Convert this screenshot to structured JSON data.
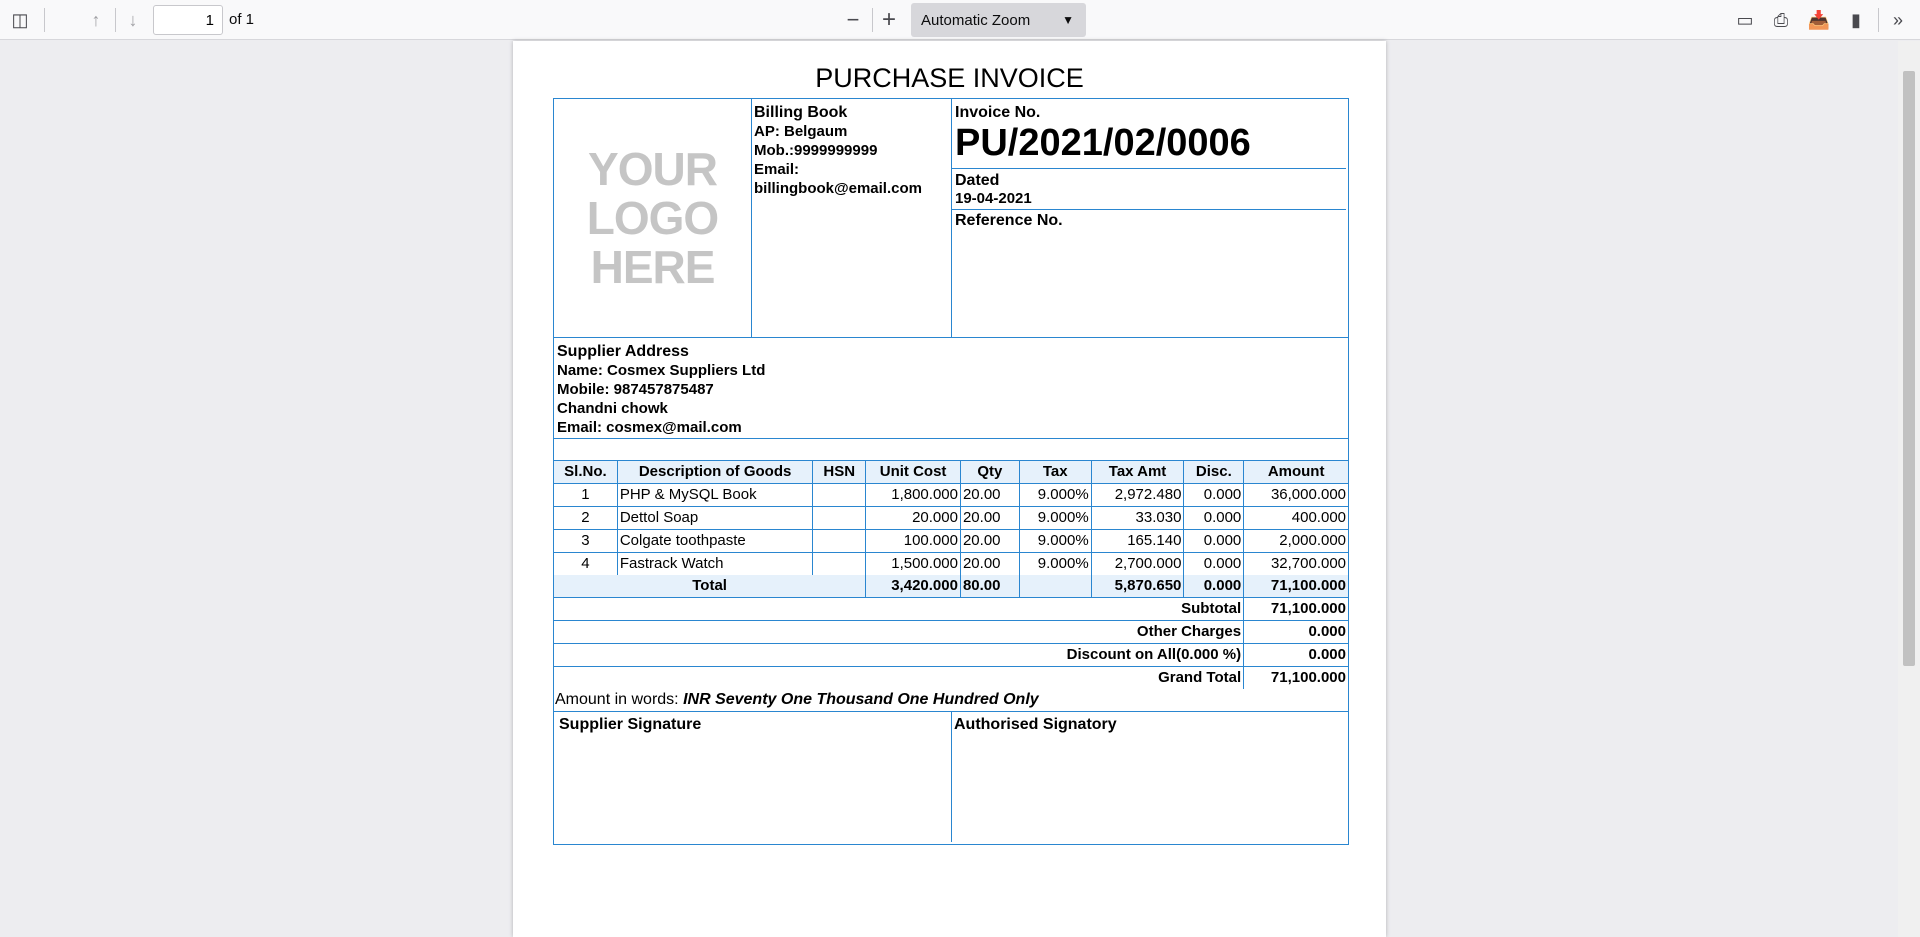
{
  "toolbar": {
    "page_current": "1",
    "page_total": "of 1",
    "zoom": "Automatic Zoom"
  },
  "invoice": {
    "title": "PURCHASE INVOICE",
    "logo": [
      "YOUR",
      "LOGO",
      "HERE"
    ],
    "seller": {
      "name": "Billing Book",
      "address": "AP: Belgaum",
      "mobile": "Mob.:9999999999",
      "email_label": "Email:",
      "email": "billingbook@email.com"
    },
    "invoice_no_label": "Invoice No.",
    "invoice_no": "PU/2021/02/0006",
    "dated_label": "Dated",
    "dated": "19-04-2021",
    "reference_label": "Reference No.",
    "supplier": {
      "heading": "Supplier Address",
      "name": "Name: Cosmex Suppliers Ltd",
      "mobile": "Mobile: 987457875487",
      "address": "Chandni chowk",
      "email": "Email: cosmex@mail.com"
    },
    "columns": [
      "Sl.No.",
      "Description of Goods",
      "HSN",
      "Unit Cost",
      "Qty",
      "Tax",
      "Tax Amt",
      "Disc.",
      "Amount"
    ],
    "items": [
      [
        "1",
        "PHP & MySQL Book",
        "",
        "1,800.000",
        "20.00",
        "9.000%",
        "2,972.480",
        "0.000",
        "36,000.000"
      ],
      [
        "2",
        "Dettol Soap",
        "",
        "20.000",
        "20.00",
        "9.000%",
        "33.030",
        "0.000",
        "400.000"
      ],
      [
        "3",
        "Colgate toothpaste",
        "",
        "100.000",
        "20.00",
        "9.000%",
        "165.140",
        "0.000",
        "2,000.000"
      ],
      [
        "4",
        "Fastrack Watch",
        "",
        "1,500.000",
        "20.00",
        "9.000%",
        "2,700.000",
        "0.000",
        "32,700.000"
      ]
    ],
    "total": {
      "label": "Total",
      "unit_cost": "3,420.000",
      "qty": "80.00",
      "tax": "",
      "tax_amt": "5,870.650",
      "disc": "0.000",
      "amount": "71,100.000"
    },
    "summary": [
      {
        "label": "Subtotal",
        "value": "71,100.000"
      },
      {
        "label": "Other Charges",
        "value": "0.000"
      },
      {
        "label": "Discount on All(0.000 %)",
        "value": "0.000"
      },
      {
        "label": "Grand Total",
        "value": "71,100.000"
      }
    ],
    "amount_words_label": "Amount in words:",
    "amount_words": "INR Seventy One Thousand One Hundred Only",
    "supplier_signature": "Supplier Signature",
    "authorised_signatory": "Authorised Signatory"
  }
}
